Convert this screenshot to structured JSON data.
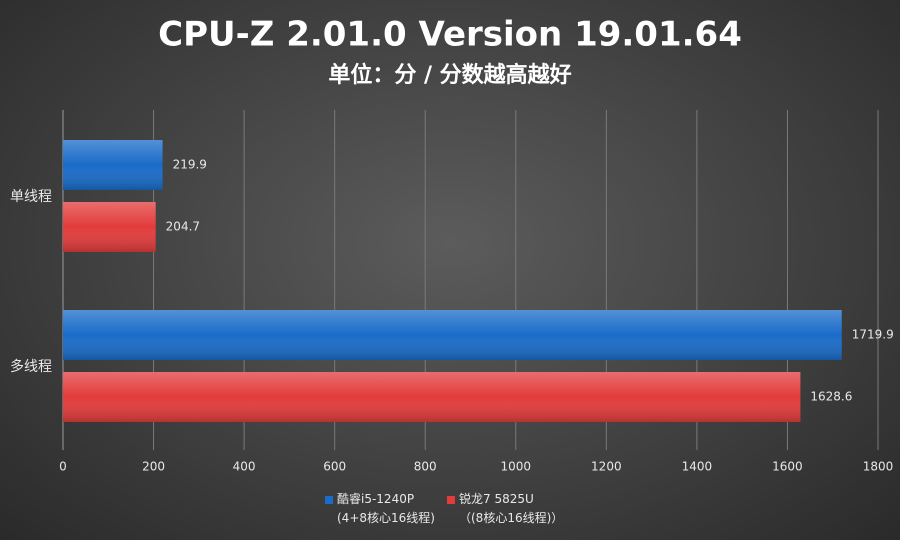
{
  "chart_data": {
    "type": "hbar",
    "title": "CPU-Z 2.01.0 Version 19.01.64",
    "subtitle": "单位：分 / 分数越高越好",
    "categories": [
      "单线程",
      "多线程"
    ],
    "series": [
      {
        "name": "酷睿i5-1240P\n(4+8核心16线程)",
        "color": "#1a6cc8",
        "values": [
          219.9,
          1719.9
        ]
      },
      {
        "name": "锐龙7 5825U\n（(8核心16线程)）",
        "color": "#e23c3c",
        "values": [
          204.7,
          1628.6
        ]
      }
    ],
    "xlim": [
      0,
      1800
    ],
    "xticks": [
      0,
      200,
      400,
      600,
      800,
      1000,
      1200,
      1400,
      1600,
      1800
    ],
    "grid": true
  }
}
